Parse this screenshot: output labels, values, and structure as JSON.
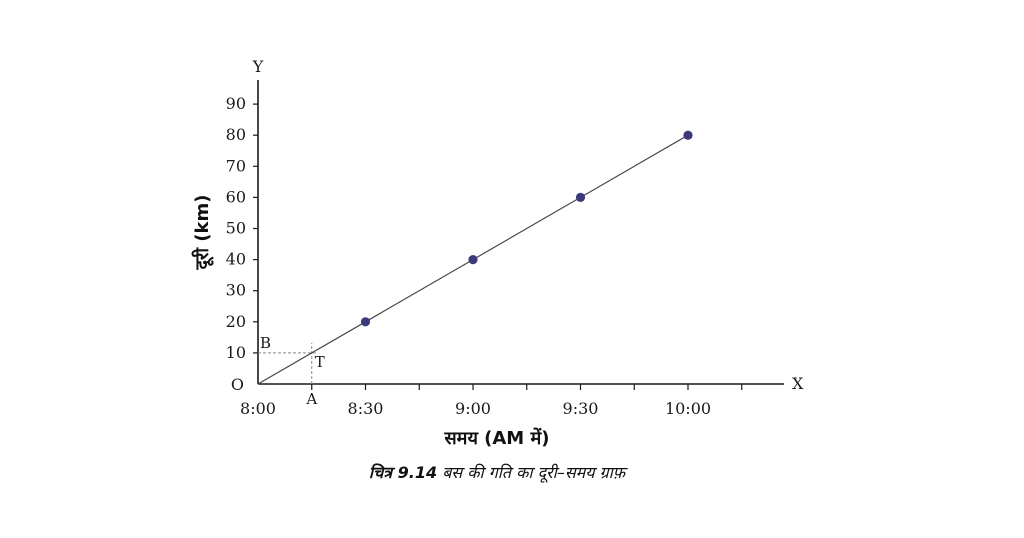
{
  "chart_data": {
    "type": "line",
    "xlabel": "समय (AM में)",
    "ylabel": "दूरी (km)",
    "x_axis_letter": "X",
    "y_axis_letter": "Y",
    "origin_label": "O",
    "x_tick_labels": [
      "8:00",
      "8:30",
      "9:00",
      "9:30",
      "10:00"
    ],
    "x_minutes_from_8": [
      0,
      30,
      60,
      90,
      120
    ],
    "y_ticks": [
      0,
      10,
      20,
      30,
      40,
      50,
      60,
      70,
      80,
      90
    ],
    "ylim": [
      0,
      90
    ],
    "grid": false,
    "series": [
      {
        "x": [
          "8:00",
          "8:30",
          "9:00",
          "9:30",
          "10:00"
        ],
        "y": [
          0,
          20,
          40,
          60,
          80
        ],
        "markers_at": [
          "8:30",
          "9:00",
          "9:30",
          "10:00"
        ],
        "color": "#3a3a7a"
      }
    ],
    "annotations": {
      "A": {
        "label": "A",
        "x_minutes_from_8": 15
      },
      "B": {
        "label": "B",
        "y": 10
      },
      "T": {
        "label": "T",
        "x_minutes_from_8": 15,
        "y": 10
      }
    }
  },
  "caption": {
    "prefix": "चित्र 9.14",
    "text": "बस की गति का दूरी–समय ग्राफ़"
  },
  "colors": {
    "axis": "#1a1a1a",
    "line": "#4a4a4a",
    "marker": "#3a3a7a",
    "guide": "#888888"
  }
}
